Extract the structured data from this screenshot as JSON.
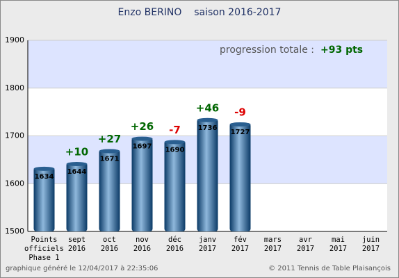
{
  "chart_data": {
    "type": "bar",
    "title": "Enzo BERINO    saison 2016-2017",
    "categories": [
      [
        "Points",
        "officiels",
        "Phase 1"
      ],
      [
        "sept",
        "2016"
      ],
      [
        "oct",
        "2016"
      ],
      [
        "nov",
        "2016"
      ],
      [
        "déc",
        "2016"
      ],
      [
        "janv",
        "2017"
      ],
      [
        "fév",
        "2017"
      ],
      [
        "mars",
        "2017"
      ],
      [
        "avr",
        "2017"
      ],
      [
        "mai",
        "2017"
      ],
      [
        "juin",
        "2017"
      ]
    ],
    "values": [
      1634,
      1644,
      1671,
      1697,
      1690,
      1736,
      1727,
      null,
      null,
      null,
      null
    ],
    "annotations": [
      null,
      {
        "text": "+10",
        "color": "#006600"
      },
      {
        "text": "+27",
        "color": "#006600"
      },
      {
        "text": "+26",
        "color": "#006600"
      },
      {
        "text": "-7",
        "color": "#dd0000"
      },
      {
        "text": "+46",
        "color": "#006600"
      },
      {
        "text": "-9",
        "color": "#dd0000"
      },
      null,
      null,
      null,
      null
    ],
    "total_label": "progression totale :",
    "total_value": "+93 pts",
    "ylim": [
      1500,
      1900
    ],
    "yticks": [
      1500,
      1600,
      1700,
      1800,
      1900
    ],
    "grid": true,
    "footer_left": "graphique généré le 12/04/2017 à 22:35:06",
    "footer_right": "© 2011 Tennis de Table Plaisançois"
  }
}
